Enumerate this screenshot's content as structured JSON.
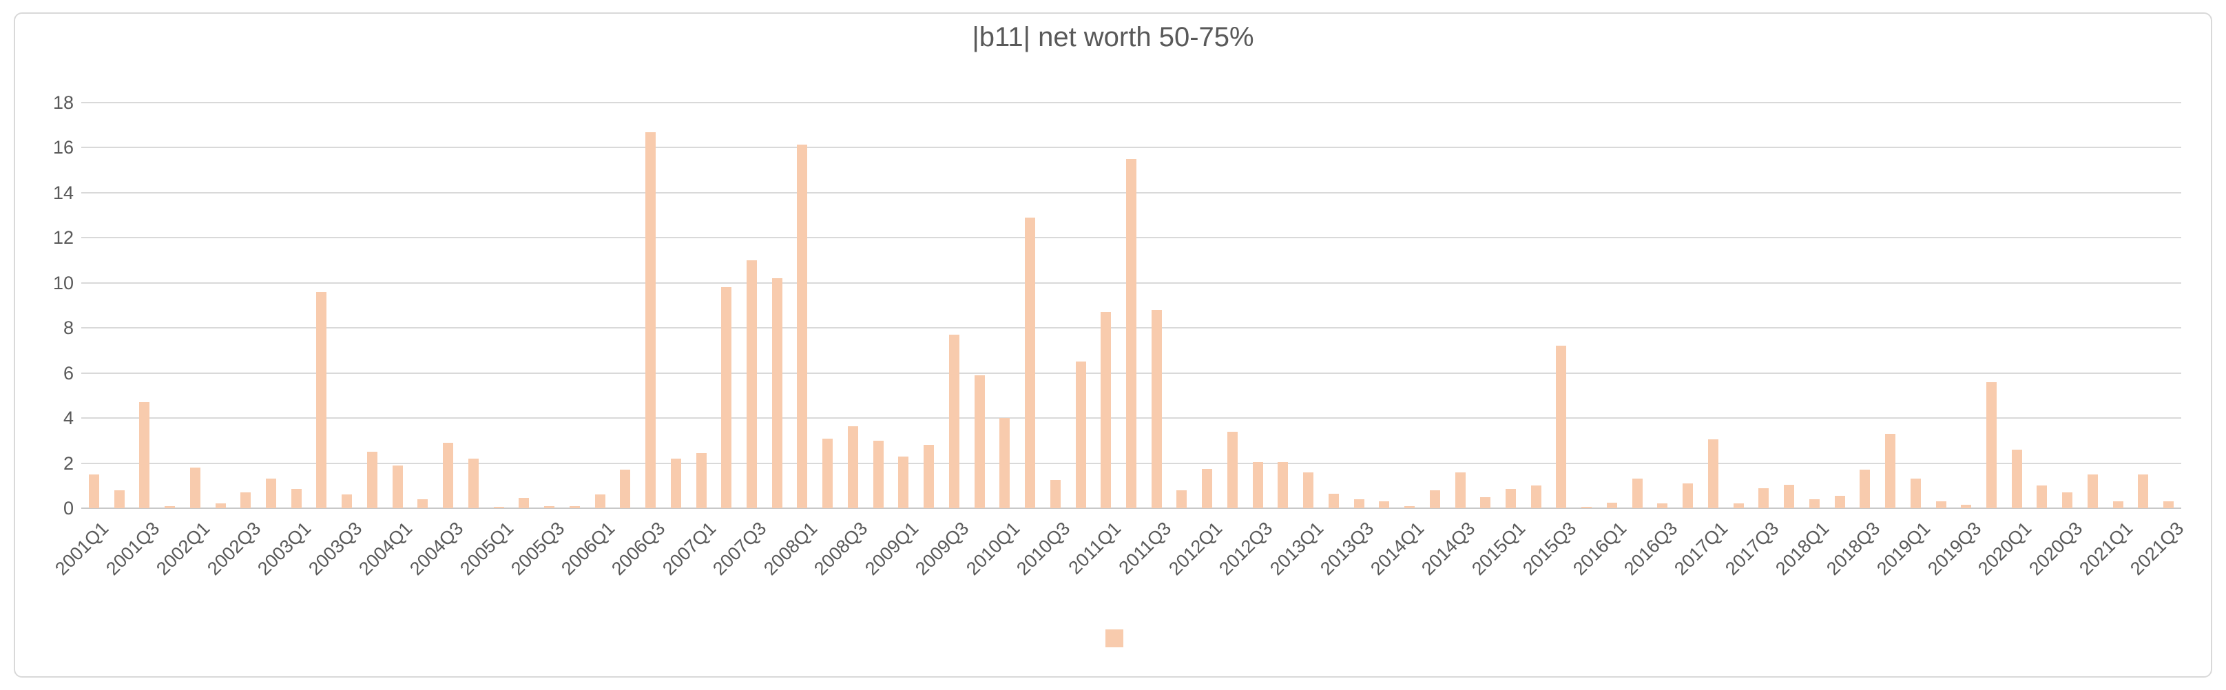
{
  "chart_data": {
    "type": "bar",
    "title": "|b11| net worth 50-75%",
    "xlabel": "",
    "ylabel": "",
    "ylim": [
      0,
      18
    ],
    "ytick_step": 2,
    "x_tick_every": 2,
    "grid": true,
    "legend_position": "bottom-center",
    "legend_label": "",
    "categories": [
      "2001Q1",
      "2001Q2",
      "2001Q3",
      "2001Q4",
      "2002Q1",
      "2002Q2",
      "2002Q3",
      "2002Q4",
      "2003Q1",
      "2003Q2",
      "2003Q3",
      "2003Q4",
      "2004Q1",
      "2004Q2",
      "2004Q3",
      "2004Q4",
      "2005Q1",
      "2005Q2",
      "2005Q3",
      "2005Q4",
      "2006Q1",
      "2006Q2",
      "2006Q3",
      "2006Q4",
      "2007Q1",
      "2007Q2",
      "2007Q3",
      "2007Q4",
      "2008Q1",
      "2008Q2",
      "2008Q3",
      "2008Q4",
      "2009Q1",
      "2009Q2",
      "2009Q3",
      "2009Q4",
      "2010Q1",
      "2010Q2",
      "2010Q3",
      "2010Q4",
      "2011Q1",
      "2011Q2",
      "2011Q3",
      "2011Q4",
      "2012Q1",
      "2012Q2",
      "2012Q3",
      "2012Q4",
      "2013Q1",
      "2013Q2",
      "2013Q3",
      "2013Q4",
      "2014Q1",
      "2014Q2",
      "2014Q3",
      "2014Q4",
      "2015Q1",
      "2015Q2",
      "2015Q3",
      "2015Q4",
      "2016Q1",
      "2016Q2",
      "2016Q3",
      "2016Q4",
      "2017Q1",
      "2017Q2",
      "2017Q3",
      "2017Q4",
      "2018Q1",
      "2018Q2",
      "2018Q3",
      "2018Q4",
      "2019Q1",
      "2019Q2",
      "2019Q3",
      "2019Q4",
      "2020Q1",
      "2020Q2",
      "2020Q3",
      "2020Q4",
      "2021Q1",
      "2021Q2",
      "2021Q3"
    ],
    "values": [
      1.5,
      0.8,
      4.7,
      0.1,
      1.8,
      0.2,
      0.7,
      1.3,
      0.85,
      9.6,
      0.6,
      2.5,
      1.9,
      0.4,
      2.9,
      2.2,
      0.05,
      0.45,
      0.1,
      0.1,
      0.6,
      1.7,
      16.7,
      2.2,
      2.45,
      9.8,
      11.0,
      10.2,
      16.15,
      3.1,
      3.65,
      3.0,
      2.3,
      2.8,
      7.7,
      5.9,
      4.0,
      12.9,
      1.25,
      6.5,
      8.7,
      15.5,
      8.8,
      0.8,
      1.75,
      3.4,
      2.05,
      2.05,
      1.6,
      0.65,
      0.4,
      0.3,
      0.1,
      0.8,
      1.6,
      0.5,
      0.85,
      1.0,
      7.2,
      0.05,
      0.25,
      1.3,
      0.2,
      1.1,
      3.05,
      0.2,
      0.9,
      1.05,
      0.4,
      0.55,
      1.7,
      3.3,
      1.3,
      0.3,
      0.15,
      5.6,
      2.6,
      1.0,
      0.7,
      1.5,
      0.3,
      1.5,
      0.3
    ]
  },
  "colors": {
    "bar": "#F8CBAD",
    "gridline": "#D9D9D9",
    "axis_line": "#C8C8C8",
    "text": "#595959",
    "frame_border": "#D9D9D9",
    "background": "#FFFFFF"
  }
}
